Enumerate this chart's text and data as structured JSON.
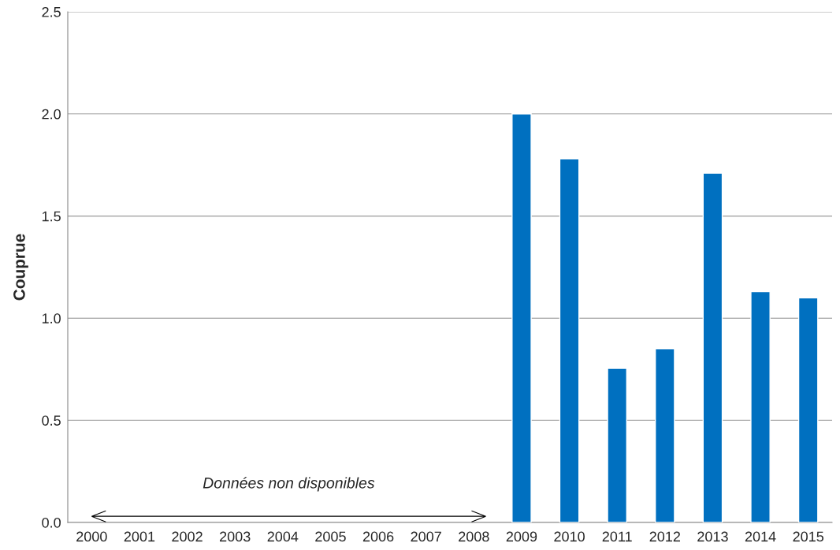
{
  "chart_data": {
    "type": "bar",
    "ylabel": "Couprue",
    "categories": [
      "2000",
      "2001",
      "2002",
      "2003",
      "2004",
      "2005",
      "2006",
      "2007",
      "2008",
      "2009",
      "2010",
      "2011",
      "2012",
      "2013",
      "2014",
      "2015"
    ],
    "values": [
      null,
      null,
      null,
      null,
      null,
      null,
      null,
      null,
      null,
      2.0,
      1.78,
      0.755,
      0.85,
      1.71,
      1.13,
      1.1
    ],
    "color": "#0070c0",
    "ylim": [
      0,
      2.5
    ],
    "yticks": [
      {
        "value": 0,
        "label": "0.0"
      },
      {
        "value": 0.5,
        "label": "0.5"
      },
      {
        "value": 1.0,
        "label": "1.0"
      },
      {
        "value": 1.5,
        "label": "1.5"
      },
      {
        "value": 2.0,
        "label": "2.0"
      },
      {
        "value": 2.5,
        "label": "2.5"
      }
    ],
    "grid": "y",
    "legend": false,
    "annotations": [
      "Données non disponibles"
    ]
  }
}
